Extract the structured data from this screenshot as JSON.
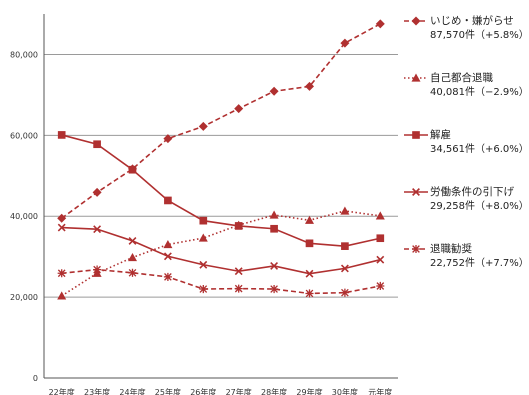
{
  "chart_data": {
    "type": "line",
    "categories": [
      "22年度",
      "23年度",
      "24年度",
      "25年度",
      "26年度",
      "27年度",
      "28年度",
      "29年度",
      "30年度",
      "元年度"
    ],
    "ylim": [
      0,
      90000
    ],
    "yticks": [
      "0",
      "20,000",
      "40,000",
      "60,000",
      "80,000"
    ],
    "ytick_values": [
      0,
      20000,
      40000,
      60000,
      80000
    ],
    "grid": true,
    "legend_position": "right",
    "series_color": "#b03030",
    "series": [
      {
        "name": "いじめ・嫌がらせ",
        "summary": "87,570件（+5.8%）",
        "marker": "diamond",
        "line": "dashed",
        "values": [
          39500,
          45900,
          51700,
          59200,
          62200,
          66600,
          70900,
          72100,
          82800,
          87570
        ]
      },
      {
        "name": "自己都合退職",
        "summary": "40,081件（−2.9%）",
        "marker": "triangle",
        "line": "dotted",
        "values": [
          20300,
          25900,
          29800,
          33000,
          34600,
          37800,
          40300,
          39000,
          41300,
          40081
        ]
      },
      {
        "name": "解雇",
        "summary": "34,561件（+6.0%）",
        "marker": "square",
        "line": "solid",
        "values": [
          60100,
          57800,
          51500,
          43900,
          38900,
          37600,
          36900,
          33300,
          32600,
          34561
        ]
      },
      {
        "name": "労働条件の引下げ",
        "summary": "29,258件（+8.0%）",
        "marker": "x",
        "line": "solid",
        "values": [
          37200,
          36800,
          33900,
          30100,
          28000,
          26400,
          27700,
          25800,
          27100,
          29258
        ]
      },
      {
        "name": "退職勧奨",
        "summary": "22,752件（+7.7%）",
        "marker": "asterisk",
        "line": "dashed",
        "values": [
          25900,
          26800,
          26000,
          25000,
          22000,
          22100,
          22000,
          20900,
          21100,
          22752
        ]
      }
    ]
  }
}
